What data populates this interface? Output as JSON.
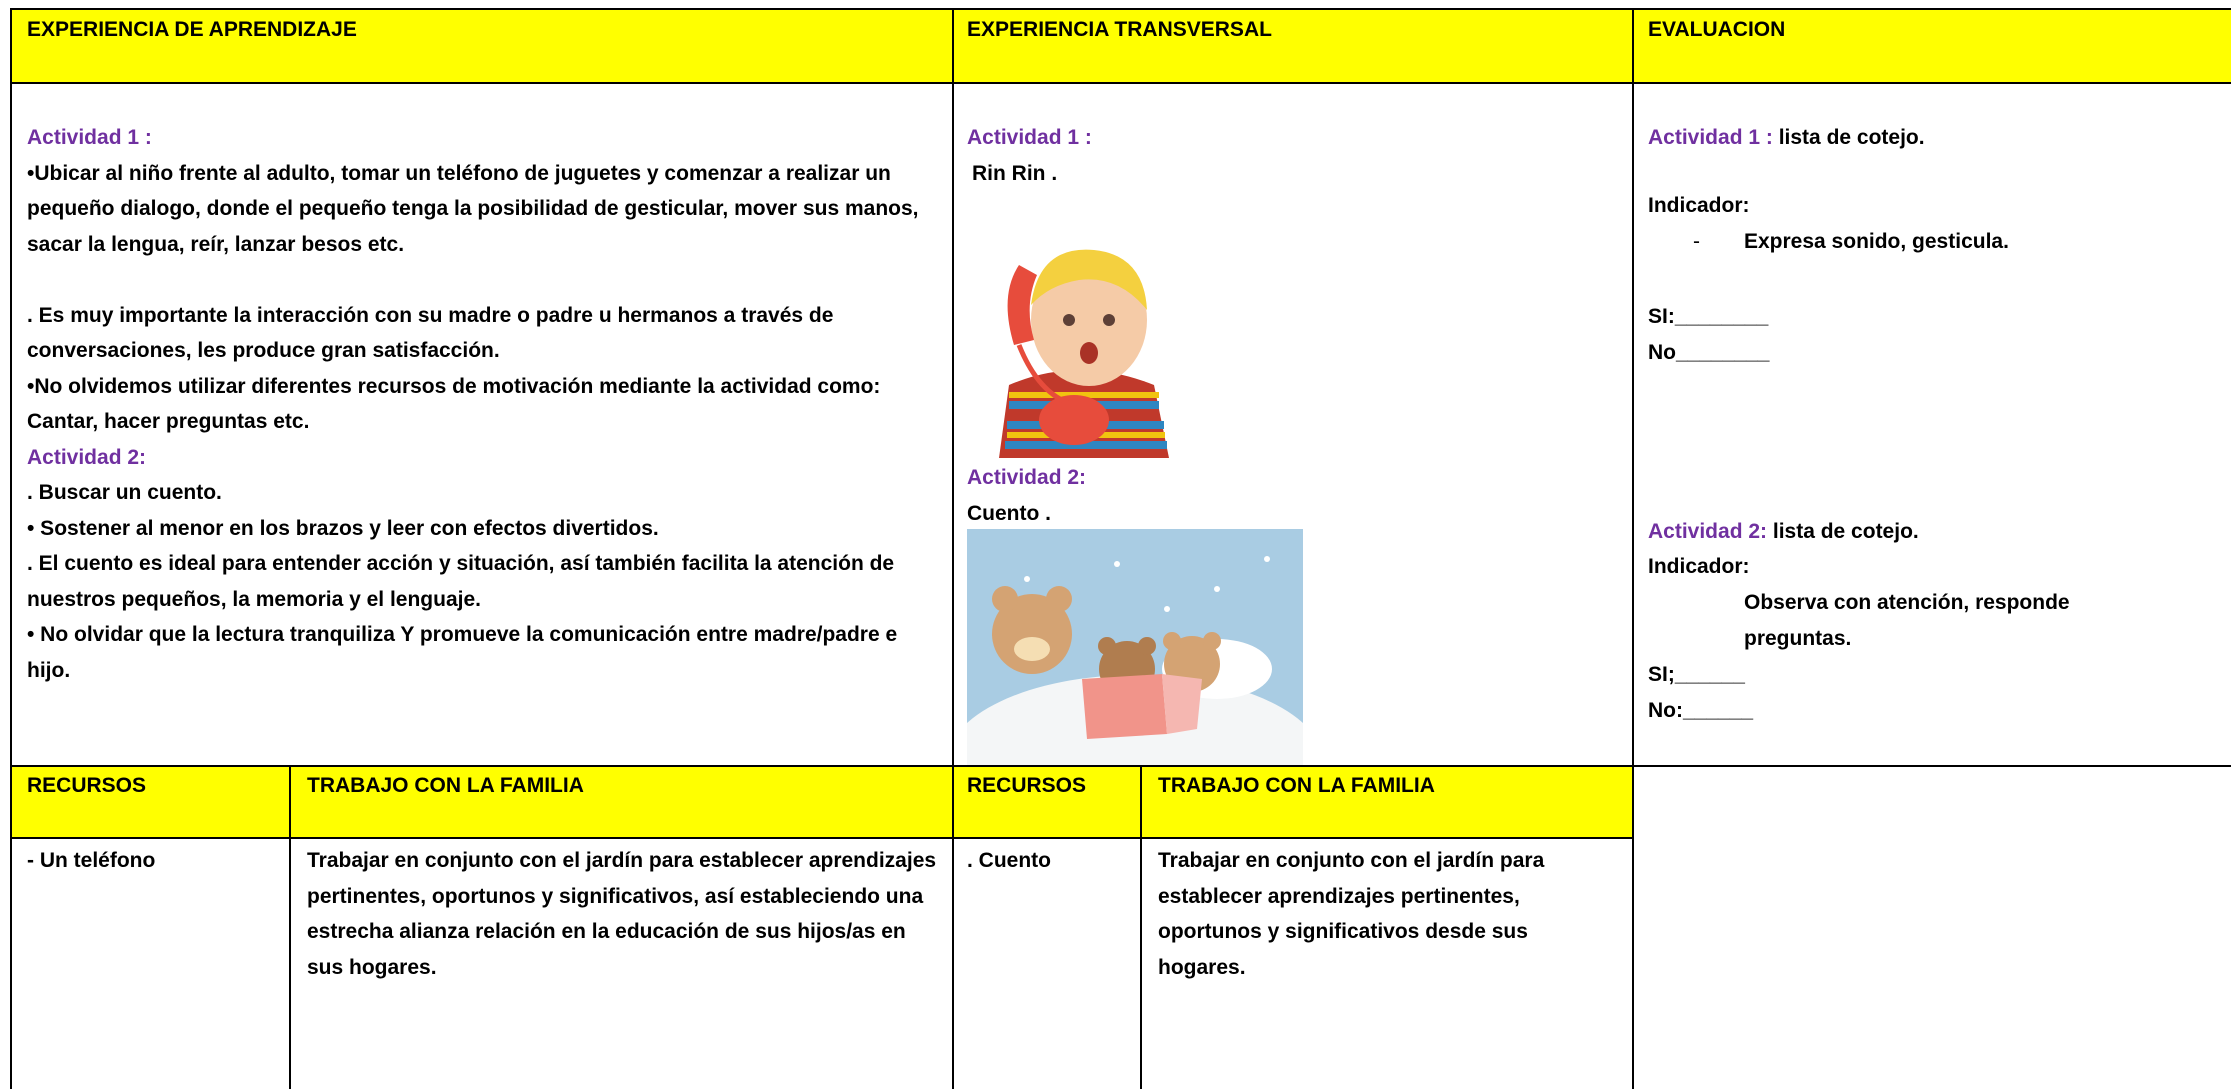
{
  "headers": {
    "aprendizaje": "EXPERIENCIA DE APRENDIZAJE",
    "transversal": "EXPERIENCIA TRANSVERSAL",
    "evaluacion": "EVALUACION"
  },
  "aprendizaje": {
    "activity1": {
      "label": "Actividad 1 :",
      "paragraphs": [
        "•Ubicar al niño frente al adulto, tomar un teléfono de juguetes y comenzar a realizar un pequeño dialogo, donde el pequeño tenga la posibilidad de gesticular, mover sus manos, sacar la lengua, reír, lanzar besos etc.",
        ". Es muy importante la interacción con su madre o padre u hermanos a través de conversaciones, les produce gran satisfacción.",
        "•No olvidemos utilizar diferentes recursos de motivación mediante la actividad como: Cantar, hacer preguntas etc."
      ]
    },
    "activity2": {
      "label": "Actividad 2:",
      "paragraphs": [
        ". Buscar un cuento.",
        "• Sostener al menor en los brazos y  leer con efectos divertidos.",
        ". El cuento  es ideal para entender acción y situación, así también facilita la atención de nuestros pequeños, la memoria y el lenguaje.",
        "• No olvidar que la lectura tranquiliza Y promueve la comunicación entre madre/padre e hijo."
      ]
    }
  },
  "transversal": {
    "activity1": {
      "label": "Actividad 1 :",
      "text": "Rin Rin ."
    },
    "activity2": {
      "label": "Actividad 2:",
      "text": "Cuento ."
    }
  },
  "evaluacion": {
    "activity1": {
      "label": "Actividad 1 :",
      "tool": " lista de cotejo.",
      "indicator_label": "Indicador:",
      "indicator": "Expresa sonido, gesticula.",
      "si": "SI:________",
      "no": "No________"
    },
    "activity2": {
      "label": "Actividad 2:",
      "tool": " lista de cotejo.",
      "indicator_label": "Indicador:",
      "indicator": "Observa con atención, responde preguntas.",
      "si": "SI;______",
      "no": "No:______"
    }
  },
  "bottom": {
    "left": {
      "recursos_header": "RECURSOS",
      "familia_header": "TRABAJO CON LA FAMILIA",
      "recursos": "- Un teléfono",
      "familia": "Trabajar en conjunto con el jardín para establecer aprendizajes pertinentes, oportunos y significativos, así estableciendo una estrecha alianza relación en la educación de sus hijos/as en sus hogares."
    },
    "middle": {
      "recursos_header": "RECURSOS",
      "familia_header": "TRABAJO CON LA FAMILIA",
      "recursos": ". Cuento",
      "familia": "Trabajar en conjunto con el jardín para establecer aprendizajes pertinentes, oportunos y significativos desde sus hogares."
    }
  }
}
